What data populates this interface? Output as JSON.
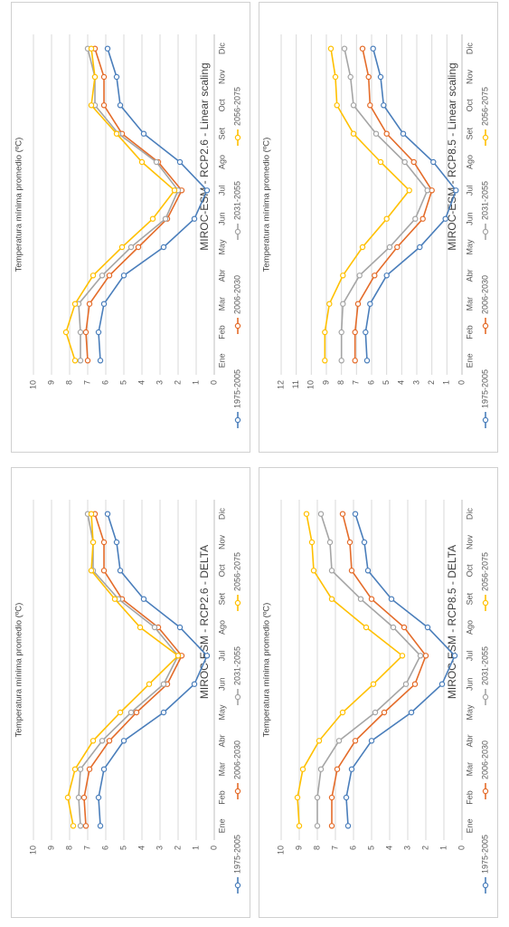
{
  "chart_data": [
    {
      "type": "line",
      "title": "MIROC-ESM - RCP2.6 - DELTA",
      "ylabel": "Temperatura mínima promedio (ºC)",
      "ylim": [
        0,
        10
      ],
      "yticks": [
        0,
        1,
        2,
        3,
        4,
        5,
        6,
        7,
        8,
        9,
        10
      ],
      "grid": true,
      "legend_position": "top",
      "categories": [
        "Ene",
        "Feb",
        "Mar",
        "Abr",
        "May",
        "Jun",
        "Jul",
        "Ago",
        "Set",
        "Oct",
        "Nov",
        "Dic"
      ],
      "series": [
        {
          "name": "1975-2005",
          "color": "#4a7ebb",
          "values": [
            6.3,
            6.4,
            6.1,
            5.0,
            2.8,
            1.1,
            0.4,
            1.9,
            3.9,
            5.2,
            5.4,
            5.9
          ]
        },
        {
          "name": "2006-2030",
          "color": "#e46c2a",
          "values": [
            7.1,
            7.2,
            6.9,
            5.8,
            4.3,
            2.6,
            1.8,
            3.1,
            5.1,
            6.1,
            6.1,
            6.6
          ]
        },
        {
          "name": "2031-2055",
          "color": "#a5a5a5",
          "values": [
            7.4,
            7.5,
            7.4,
            6.2,
            4.6,
            2.8,
            2.0,
            3.3,
            5.3,
            6.7,
            6.7,
            7.0
          ]
        },
        {
          "name": "2056-2075",
          "color": "#ffc000",
          "values": [
            7.8,
            8.1,
            7.7,
            6.7,
            5.2,
            3.6,
            2.0,
            4.1,
            5.5,
            6.8,
            6.7,
            6.8
          ]
        }
      ]
    },
    {
      "type": "line",
      "title": "MIROC-ESM - RCP2.6 - Linear scaling",
      "ylabel": "Temperatura mínima promedio (ºC)",
      "ylim": [
        0,
        10
      ],
      "yticks": [
        0,
        1,
        2,
        3,
        4,
        5,
        6,
        7,
        8,
        9,
        10
      ],
      "grid": true,
      "legend_position": "top",
      "categories": [
        "Ene",
        "Feb",
        "Mar",
        "Abr",
        "May",
        "Jun",
        "Jul",
        "Ago",
        "Set",
        "Oct",
        "Nov",
        "Dic"
      ],
      "series": [
        {
          "name": "1975-2005",
          "color": "#4a7ebb",
          "values": [
            6.3,
            6.4,
            6.1,
            5.0,
            2.8,
            1.1,
            0.4,
            1.9,
            3.9,
            5.2,
            5.4,
            5.9
          ]
        },
        {
          "name": "2006-2030",
          "color": "#e46c2a",
          "values": [
            7.0,
            7.1,
            6.9,
            5.8,
            4.2,
            2.6,
            1.8,
            3.1,
            5.1,
            6.1,
            6.1,
            6.6
          ]
        },
        {
          "name": "2031-2055",
          "color": "#a5a5a5",
          "values": [
            7.4,
            7.4,
            7.5,
            6.2,
            4.6,
            2.7,
            2.0,
            3.2,
            5.3,
            6.6,
            6.6,
            7.0
          ]
        },
        {
          "name": "2056-2075",
          "color": "#ffc000",
          "values": [
            7.7,
            8.2,
            7.7,
            6.7,
            5.1,
            3.4,
            2.2,
            4.0,
            5.4,
            6.8,
            6.6,
            6.8
          ]
        }
      ]
    },
    {
      "type": "line",
      "title": "MIROC-ESM - RCP8.5 - DELTA",
      "ylabel": "Temperatura mínima promedio (ºC)",
      "ylim": [
        0,
        10
      ],
      "yticks": [
        0,
        1,
        2,
        3,
        4,
        5,
        6,
        7,
        8,
        9,
        10
      ],
      "grid": true,
      "legend_position": "top",
      "categories": [
        "Ene",
        "Feb",
        "Mar",
        "Abr",
        "May",
        "Jun",
        "Jul",
        "Ago",
        "Set",
        "Oct",
        "Nov",
        "Dic"
      ],
      "series": [
        {
          "name": "1975-2005",
          "color": "#4a7ebb",
          "values": [
            6.3,
            6.4,
            6.1,
            5.0,
            2.8,
            1.1,
            0.4,
            1.9,
            3.9,
            5.2,
            5.4,
            5.9
          ]
        },
        {
          "name": "2006-2030",
          "color": "#e46c2a",
          "values": [
            7.2,
            7.2,
            6.9,
            5.9,
            4.3,
            2.6,
            2.0,
            3.2,
            5.0,
            6.1,
            6.2,
            6.6
          ]
        },
        {
          "name": "2031-2055",
          "color": "#a5a5a5",
          "values": [
            8.0,
            8.0,
            7.8,
            6.8,
            4.8,
            3.1,
            2.3,
            3.8,
            5.6,
            7.2,
            7.3,
            7.8
          ]
        },
        {
          "name": "2056-2075",
          "color": "#ffc000",
          "values": [
            9.0,
            9.1,
            8.8,
            7.9,
            6.6,
            4.9,
            3.3,
            5.3,
            7.2,
            8.2,
            8.3,
            8.6
          ]
        }
      ]
    },
    {
      "type": "line",
      "title": "MIROC-ESM - RCP8.5 - Linear scaling",
      "ylabel": "Temperatura mínima promedio (ºC)",
      "ylim": [
        0,
        12
      ],
      "yticks": [
        0,
        1,
        2,
        3,
        4,
        5,
        6,
        7,
        8,
        9,
        10,
        11,
        12
      ],
      "grid": true,
      "legend_position": "top",
      "categories": [
        "Ene",
        "Feb",
        "Mar",
        "Abr",
        "May",
        "Jun",
        "Jul",
        "Ago",
        "Set",
        "Oct",
        "Nov",
        "Dic"
      ],
      "series": [
        {
          "name": "1975-2005",
          "color": "#4a7ebb",
          "values": [
            6.3,
            6.4,
            6.1,
            5.0,
            2.8,
            1.1,
            0.4,
            1.9,
            3.9,
            5.2,
            5.4,
            5.9
          ]
        },
        {
          "name": "2006-2030",
          "color": "#e46c2a",
          "values": [
            7.1,
            7.1,
            6.9,
            5.8,
            4.3,
            2.6,
            2.0,
            3.2,
            5.0,
            6.1,
            6.2,
            6.6
          ]
        },
        {
          "name": "2031-2055",
          "color": "#a5a5a5",
          "values": [
            8.0,
            8.0,
            7.9,
            6.8,
            4.8,
            3.1,
            2.3,
            3.8,
            5.7,
            7.2,
            7.4,
            7.8
          ]
        },
        {
          "name": "2056-2075",
          "color": "#ffc000",
          "values": [
            9.1,
            9.1,
            8.8,
            7.9,
            6.6,
            5.0,
            3.5,
            5.4,
            7.2,
            8.3,
            8.4,
            8.7
          ]
        }
      ]
    }
  ]
}
